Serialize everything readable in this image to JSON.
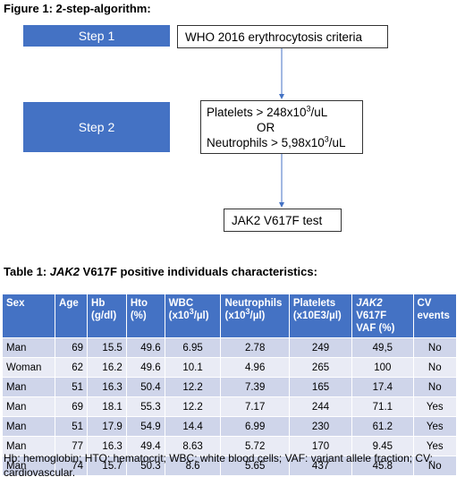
{
  "figure": {
    "title": "Figure 1: 2-step-algorithm:",
    "step1_label": "Step 1",
    "step2_label": "Step 2",
    "criteria_text": "WHO 2016 erythrocytosis criteria",
    "platelets_prefix": "Platelets > 248x10",
    "platelets_sup": "3",
    "platelets_suffix": "/uL",
    "or_text": "OR",
    "neutrophils_prefix": "Neutrophils > 5,98x10",
    "neutrophils_sup": "3",
    "neutrophils_suffix": "/uL",
    "test_text": "JAK2 V617F test",
    "accent_color": "#4472c4"
  },
  "table": {
    "title_italic": "JAK2",
    "title_prefix": "Table 1: ",
    "title_suffix": " V617F positive individuals characteristics:",
    "headers": {
      "sex": "Sex",
      "age": "Age",
      "hb": "Hb",
      "hb_unit": "(g/dl)",
      "hto": "Hto",
      "hto_unit": "(%)",
      "wbc": "WBC",
      "wbc_unit_a": "(x10",
      "wbc_unit_sup": "3",
      "wbc_unit_b": "/µl)",
      "neut": "Neutrophils",
      "neut_unit_a": "(x10",
      "neut_unit_sup": "3",
      "neut_unit_b": "/µl)",
      "plt": "Platelets",
      "plt_unit": "(x10E3/µl)",
      "jak_italic": "JAK2",
      "jak_rest": " V617F",
      "jak_unit": "VAF (%)",
      "cv": "CV",
      "cv_unit": "events"
    },
    "rows": [
      [
        "Man",
        "69",
        "15.5",
        "49.6",
        "6.95",
        "2.78",
        "249",
        "49,5",
        "No"
      ],
      [
        "Woman",
        "62",
        "16.2",
        "49.6",
        "10.1",
        "4.96",
        "265",
        "100",
        "No"
      ],
      [
        "Man",
        "51",
        "16.3",
        "50.4",
        "12.2",
        "7.39",
        "165",
        "17.4",
        "No"
      ],
      [
        "Man",
        "69",
        "18.1",
        "55.3",
        "12.2",
        "7.17",
        "244",
        "71.1",
        "Yes"
      ],
      [
        "Man",
        "51",
        "17.9",
        "54.9",
        "14.4",
        "6.99",
        "230",
        "61.2",
        "Yes"
      ],
      [
        "Man",
        "77",
        "16.3",
        "49.4",
        "8.63",
        "5.72",
        "170",
        "9.45",
        "Yes"
      ],
      [
        "Man",
        "74",
        "15.7",
        "50.3",
        "8.6",
        "5.65",
        "437",
        "45.8",
        "No"
      ]
    ]
  },
  "footnote": "Hb: hemoglobin; HTO: hematocrit; WBC: white blood cells; VAF: variant allele fraction; CV: cardiovascular."
}
